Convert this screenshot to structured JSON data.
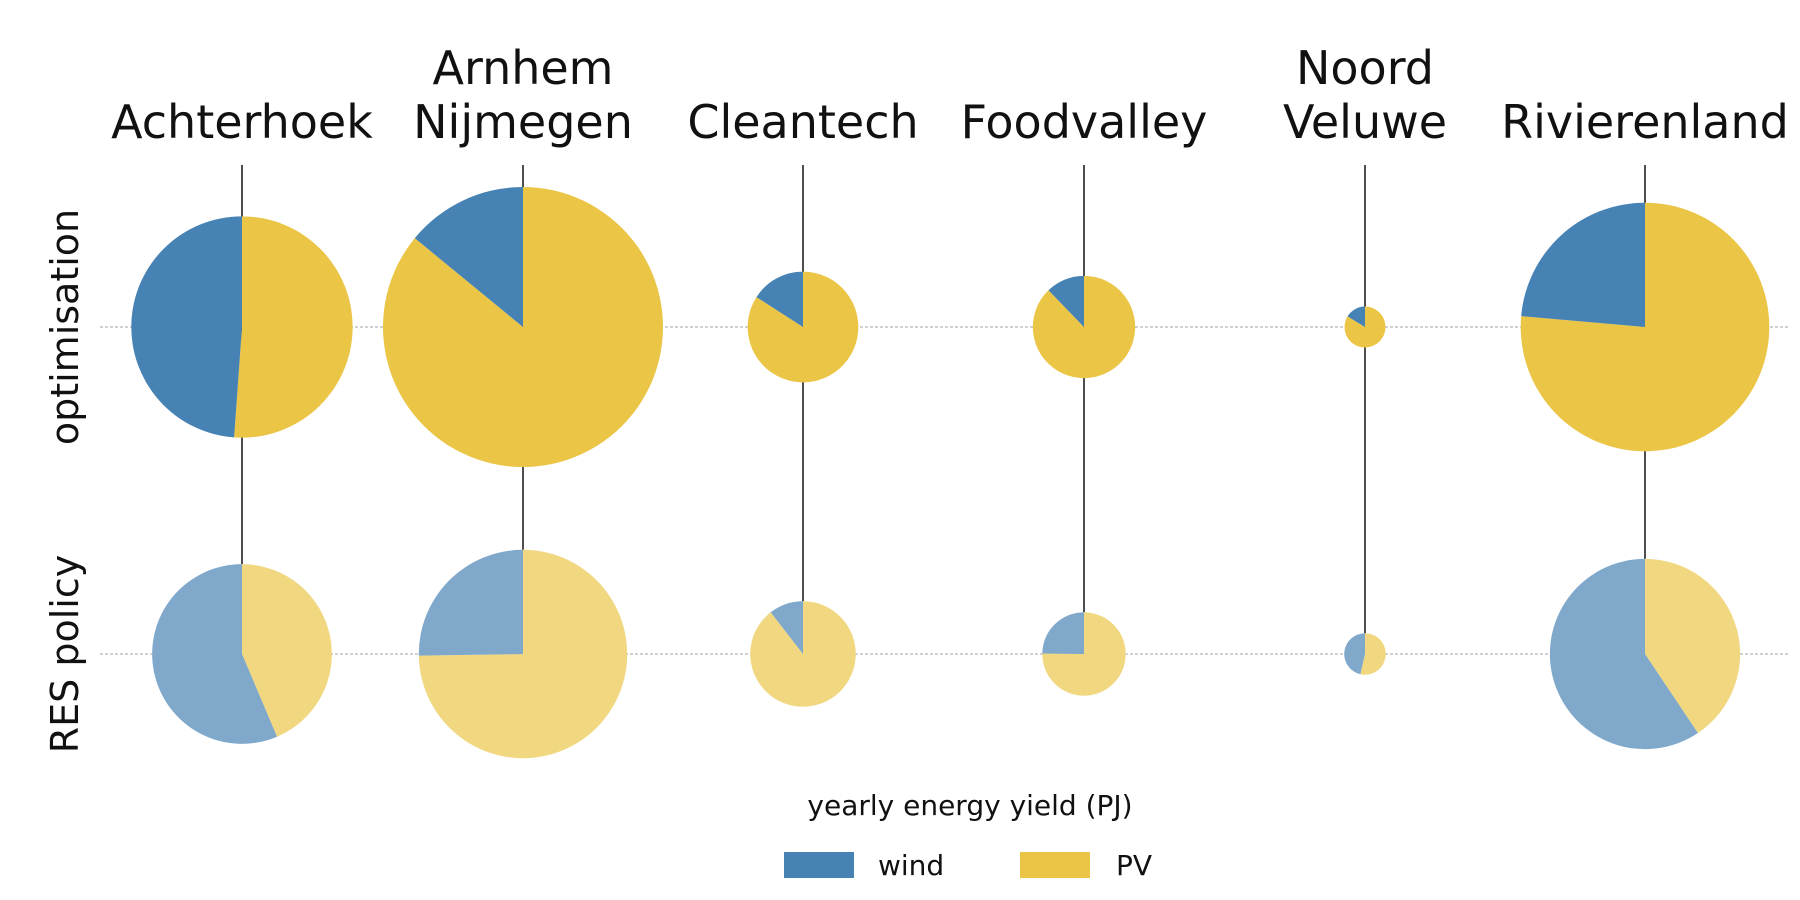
{
  "chart_data": {
    "type": "pie",
    "regions": [
      "Achterhoek",
      "Arnhem Nijmegen",
      "Cleantech",
      "Foodvalley",
      "Noord Veluwe",
      "Rivierenland"
    ],
    "region_title_lines": [
      [
        "Achterhoek"
      ],
      [
        "Arnhem",
        "Nijmegen"
      ],
      [
        "Cleantech"
      ],
      [
        "Foodvalley"
      ],
      [
        "Noord",
        "Veluwe"
      ],
      [
        "Rivierenland"
      ]
    ],
    "scenarios": [
      "optimisation",
      "RES policy"
    ],
    "series": [
      {
        "name": "optimisation",
        "wind": [
          4.3,
          1.98,
          0.35,
          0.23,
          0.049,
          2.62
        ],
        "pv": [
          4.5,
          12.1,
          1.85,
          1.65,
          0.251,
          8.48
        ]
      },
      {
        "name": "RES policy",
        "wind": [
          3.27,
          1.97,
          0.21,
          0.31,
          0.144,
          3.86
        ],
        "pv": [
          2.53,
          5.83,
          1.79,
          0.94,
          0.166,
          2.64
        ]
      }
    ],
    "legend": {
      "title": "yearly energy yield (PJ)",
      "items": [
        {
          "label": "wind",
          "key": "wind"
        },
        {
          "label": "PV",
          "key": "pv"
        }
      ]
    },
    "colors": {
      "wind": "#4682b4",
      "pv": "#ebc546",
      "wind_light": "#7fa8cb",
      "pv_light": "#f1d780",
      "stem": "#222222",
      "baseline": "#a0a0a0"
    }
  }
}
